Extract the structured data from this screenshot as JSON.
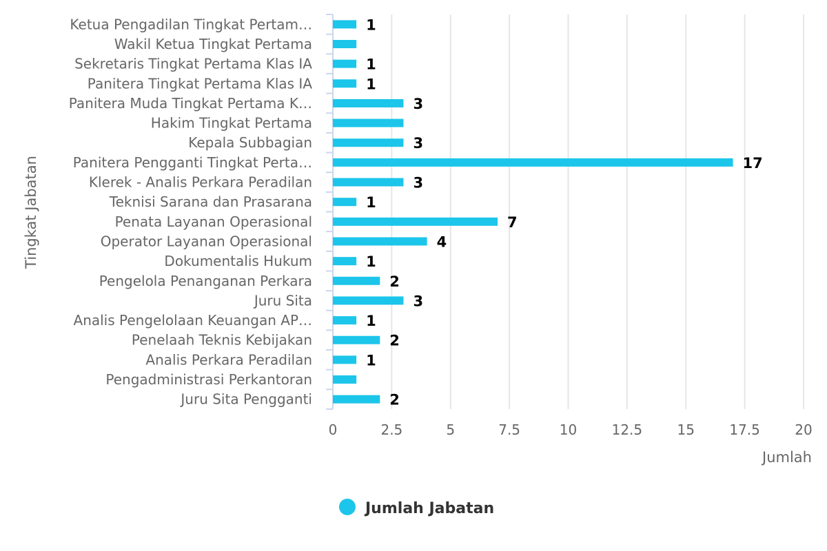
{
  "chart_data": {
    "type": "bar",
    "orientation": "horizontal",
    "categories": [
      "Ketua Pengadilan Tingkat Pertam…",
      "Wakil Ketua Tingkat Pertama",
      "Sekretaris Tingkat Pertama Klas IA",
      "Panitera Tingkat Pertama Klas IA",
      "Panitera Muda Tingkat Pertama K…",
      "Hakim Tingkat Pertama",
      "Kepala Subbagian",
      "Panitera Pengganti Tingkat Perta…",
      "Klerek - Analis Perkara Peradilan",
      "Teknisi Sarana dan Prasarana",
      "Penata Layanan Operasional",
      "Operator Layanan Operasional",
      "Dokumentalis Hukum",
      "Pengelola Penanganan Perkara",
      "Juru Sita",
      "Analis Pengelolaan Keuangan AP…",
      "Penelaah Teknis Kebijakan",
      "Analis Perkara Peradilan",
      "Pengadministrasi Perkantoran",
      "Juru Sita Pengganti"
    ],
    "series": [
      {
        "name": "Jumlah Jabatan",
        "values": [
          1,
          1,
          1,
          1,
          3,
          3,
          3,
          17,
          3,
          1,
          7,
          4,
          1,
          2,
          3,
          1,
          2,
          1,
          1,
          2
        ],
        "data_labels": [
          "1",
          "",
          "1",
          "1",
          "3",
          "",
          "3",
          "17",
          "3",
          "1",
          "7",
          "4",
          "1",
          "2",
          "3",
          "1",
          "2",
          "1",
          "",
          "2"
        ]
      }
    ],
    "xlabel": "Jumlah",
    "ylabel": "Tingkat Jabatan",
    "xlim": [
      0,
      20
    ],
    "xticks": [
      "0",
      "2.5",
      "5",
      "7.5",
      "10",
      "12.5",
      "15",
      "17.5",
      "20"
    ],
    "grid": true,
    "legend_position": "bottom-center",
    "colors": {
      "bar": "#1cc5ea",
      "grid": "#e6e6e6",
      "axis": "#ccd6eb"
    }
  }
}
